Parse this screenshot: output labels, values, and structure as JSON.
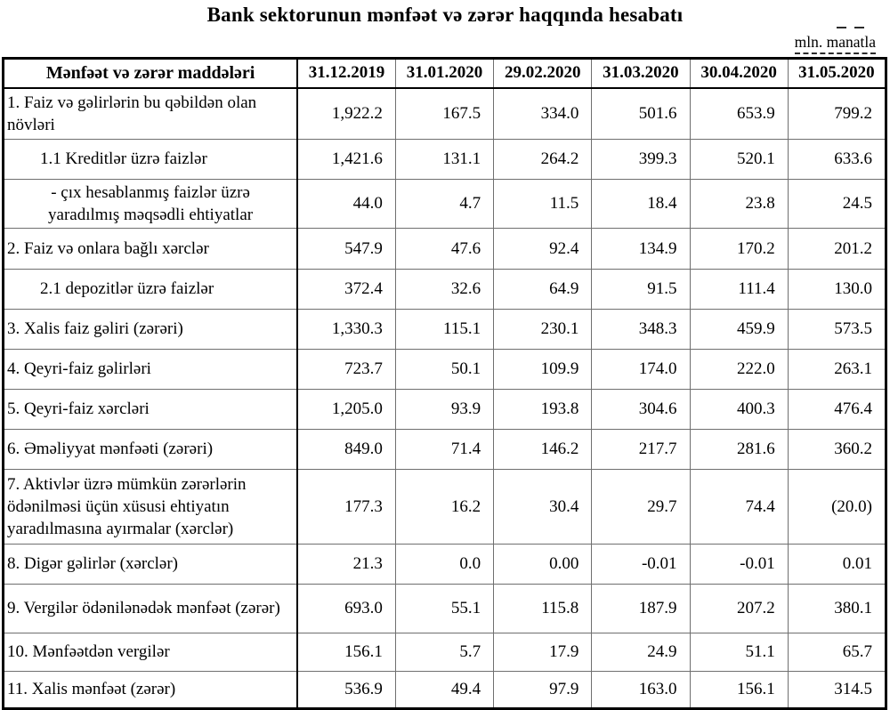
{
  "title": "Bank sektorunun mənfəət və zərər haqqında hesabatı",
  "unit_note": "mln. manatla",
  "table": {
    "header": {
      "label": "Mənfəət və zərər maddələri",
      "dates": [
        "31.12.2019",
        "31.01.2020",
        "29.02.2020",
        "31.03.2020",
        "30.04.2020",
        "31.05.2020"
      ]
    },
    "rows": [
      {
        "label": "1. Faiz və gəlirlərin bu qəbildən olan növləri",
        "indent": "none",
        "values": [
          "1,922.2",
          "167.5",
          "334.0",
          "501.6",
          "653.9",
          "799.2"
        ]
      },
      {
        "label": "1.1 Kreditlər üzrə faizlər",
        "indent": "sub",
        "values": [
          "1,421.6",
          "131.1",
          "264.2",
          "399.3",
          "520.1",
          "633.6"
        ]
      },
      {
        "label": "-  çıx hesablanmış faizlər üzrə yaradılmış məqsədli ehtiyatlar",
        "indent": "dash",
        "values": [
          "44.0",
          "4.7",
          "11.5",
          "18.4",
          "23.8",
          "24.5"
        ]
      },
      {
        "label": "2. Faiz və onlara bağlı xərclər",
        "indent": "none",
        "values": [
          "547.9",
          "47.6",
          "92.4",
          "134.9",
          "170.2",
          "201.2"
        ]
      },
      {
        "label": "2.1 depozitlər üzrə faizlər",
        "indent": "sub",
        "values": [
          "372.4",
          "32.6",
          "64.9",
          "91.5",
          "111.4",
          "130.0"
        ]
      },
      {
        "label": "3. Xalis faiz gəliri (zərəri)",
        "indent": "none",
        "values": [
          "1,330.3",
          "115.1",
          "230.1",
          "348.3",
          "459.9",
          "573.5"
        ]
      },
      {
        "label": "4. Qeyri-faiz gəlirləri",
        "indent": "none",
        "values": [
          "723.7",
          "50.1",
          "109.9",
          "174.0",
          "222.0",
          "263.1"
        ]
      },
      {
        "label": "5. Qeyri-faiz xərcləri",
        "indent": "none",
        "values": [
          "1,205.0",
          "93.9",
          "193.8",
          "304.6",
          "400.3",
          "476.4"
        ]
      },
      {
        "label": "6. Əməliyyat mənfəəti (zərəri)",
        "indent": "none",
        "values": [
          "849.0",
          "71.4",
          "146.2",
          "217.7",
          "281.6",
          "360.2"
        ]
      },
      {
        "label": "7. Aktivlər üzrə mümkün zərərlərin ödənilməsi üçün xüsusi ehtiyatın yaradılmasına ayırmalar (xərclər)",
        "indent": "none",
        "values": [
          "177.3",
          "16.2",
          "30.4",
          "29.7",
          "74.4",
          "(20.0)"
        ]
      },
      {
        "label": "8. Digər gəlirlər (xərclər)",
        "indent": "none",
        "values": [
          "21.3",
          "0.0",
          "0.00",
          "-0.01",
          "-0.01",
          "0.01"
        ]
      },
      {
        "label": "9. Vergilər ödənilənədək mənfəət (zərər)",
        "indent": "none",
        "values": [
          "693.0",
          "55.1",
          "115.8",
          "187.9",
          "207.2",
          "380.1"
        ]
      },
      {
        "label": "10. Mənfəətdən vergilər",
        "indent": "none",
        "values": [
          "156.1",
          "5.7",
          "17.9",
          "24.9",
          "51.1",
          "65.7"
        ]
      },
      {
        "label": "11. Xalis mənfəət (zərər)",
        "indent": "none",
        "values": [
          "536.9",
          "49.4",
          "97.9",
          "163.0",
          "156.1",
          "314.5"
        ]
      }
    ]
  }
}
